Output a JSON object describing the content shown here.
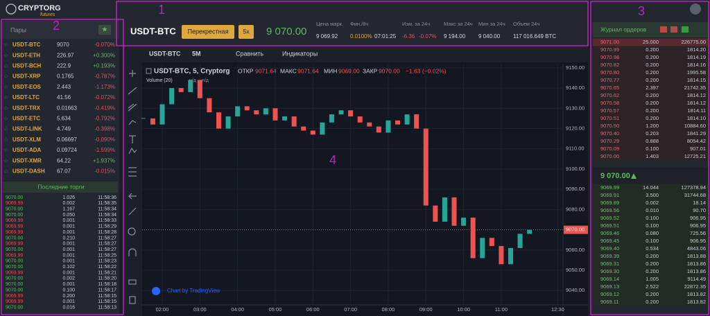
{
  "logo": {
    "name": "CRYPTORG",
    "sub": "futures"
  },
  "annotations": [
    "1",
    "2",
    "3",
    "4"
  ],
  "header": {
    "pair": "USDT-BTC",
    "margin_mode": "Перекрестная",
    "leverage": "5x",
    "price": "9 070.00",
    "stats": [
      {
        "label": "Цена марк.",
        "values": [
          "9 069.92"
        ]
      },
      {
        "label": "Фин./8ч",
        "values": [
          "0.0100%",
          "07:01:25"
        ]
      },
      {
        "label": "Изм. за 24ч",
        "values": [
          "-6.36",
          "-0.07%"
        ]
      },
      {
        "label": "Макс за 24ч",
        "values": [
          "9 194.00"
        ]
      },
      {
        "label": "Мин за 24ч",
        "values": [
          "9 040.00"
        ]
      },
      {
        "label": "Объем 24ч",
        "values": [
          "117 016.649 BTC"
        ]
      }
    ]
  },
  "pairs": {
    "title": "Пары",
    "rows": [
      [
        "USDT-BTC",
        "9070",
        "-0.070%"
      ],
      [
        "USDT-ETH",
        "226.97",
        "+0.300%"
      ],
      [
        "USDT-BCH",
        "222.9",
        "+0.193%"
      ],
      [
        "USDT-XRP",
        "0.1765",
        "-0.787%"
      ],
      [
        "USDT-EOS",
        "2.443",
        "-1.173%"
      ],
      [
        "USDT-LTC",
        "41.56",
        "-0.072%"
      ],
      [
        "USDT-TRX",
        "0.01663",
        "-0.419%"
      ],
      [
        "USDT-ETC",
        "5.634",
        "-0.792%"
      ],
      [
        "USDT-LINK",
        "4.749",
        "-0.398%"
      ],
      [
        "USDT-XLM",
        "0.06697",
        "-0.090%"
      ],
      [
        "USDT-ADA",
        "0.09724",
        "-1.599%"
      ],
      [
        "USDT-XMR",
        "64.22",
        "+1.937%"
      ],
      [
        "USDT-DASH",
        "67.07",
        "-0.015%"
      ]
    ]
  },
  "trades": {
    "title": "Последние торги",
    "rows": [
      [
        "9070.00",
        "1.026",
        "11:58:36"
      ],
      [
        "9069.99",
        "0.002",
        "11:58:35"
      ],
      [
        "9070.00",
        "1.167",
        "11:58:34"
      ],
      [
        "9070.00",
        "0.050",
        "11:58:34"
      ],
      [
        "9069.99",
        "0.001",
        "11:58:33"
      ],
      [
        "9069.99",
        "0.001",
        "11:58:29"
      ],
      [
        "9069.99",
        "0.001",
        "11:58:28"
      ],
      [
        "9070.00",
        "0.210",
        "11:58:27"
      ],
      [
        "9069.99",
        "0.001",
        "11:58:27"
      ],
      [
        "9070.00",
        "0.001",
        "11:58:27"
      ],
      [
        "9069.99",
        "0.001",
        "11:58:25"
      ],
      [
        "9070.00",
        "0.001",
        "11:58:23"
      ],
      [
        "9070.00",
        "0.102",
        "11:58:22"
      ],
      [
        "9069.99",
        "0.001",
        "11:58:21"
      ],
      [
        "9070.00",
        "0.002",
        "11:58:20"
      ],
      [
        "9070.00",
        "0.001",
        "11:58:18"
      ],
      [
        "9070.00",
        "0.100",
        "11:58:17"
      ],
      [
        "9069.99",
        "0.200",
        "11:58:15"
      ],
      [
        "9069.99",
        "0.001",
        "11:58:15"
      ],
      [
        "9070.00",
        "0.016",
        "11:58:13"
      ]
    ],
    "sides": [
      "buy",
      "sell",
      "buy",
      "buy",
      "sell",
      "sell",
      "sell",
      "buy",
      "sell",
      "buy",
      "sell",
      "buy",
      "buy",
      "sell",
      "buy",
      "buy",
      "buy",
      "sell",
      "sell",
      "buy"
    ]
  },
  "orderbook": {
    "title": "Журнал ордеров",
    "mid_price": "9 070.00",
    "asks": [
      [
        "9071.00",
        "25.000",
        "226775.00"
      ],
      [
        "9070.99",
        "0.200",
        "1814.20"
      ],
      [
        "9070.98",
        "0.200",
        "1814.19"
      ],
      [
        "9070.82",
        "0.200",
        "1814.16"
      ],
      [
        "9070.80",
        "0.200",
        "1995.58"
      ],
      [
        "9070.77",
        "0.200",
        "1814.15"
      ],
      [
        "9070.65",
        "2.397",
        "21742.35"
      ],
      [
        "9070.62",
        "0.200",
        "1814.12"
      ],
      [
        "9070.58",
        "0.200",
        "1814.12"
      ],
      [
        "9070.57",
        "0.200",
        "1814.11"
      ],
      [
        "9070.51",
        "0.200",
        "1814.10"
      ],
      [
        "9070.50",
        "1.200",
        "10884.60"
      ],
      [
        "9070.40",
        "0.203",
        "1841.29"
      ],
      [
        "9070.29",
        "0.888",
        "8054.42"
      ],
      [
        "9070.09",
        "0.100",
        "907.01"
      ],
      [
        "9070.00",
        "1.403",
        "12725.21"
      ]
    ],
    "bids": [
      [
        "9069.99",
        "14.044",
        "127378.94"
      ],
      [
        "9069.91",
        "3.500",
        "31744.68"
      ],
      [
        "9069.89",
        "0.002",
        "18.14"
      ],
      [
        "9069.56",
        "0.010",
        "90.70"
      ],
      [
        "9069.52",
        "0.100",
        "906.95"
      ],
      [
        "9069.51",
        "0.100",
        "906.95"
      ],
      [
        "9069.46",
        "0.080",
        "725.56"
      ],
      [
        "9069.45",
        "0.100",
        "906.95"
      ],
      [
        "9069.40",
        "0.534",
        "4843.06"
      ],
      [
        "9069.39",
        "0.200",
        "1813.88"
      ],
      [
        "9069.31",
        "0.200",
        "1813.86"
      ],
      [
        "9069.30",
        "0.200",
        "1813.86"
      ],
      [
        "9069.14",
        "1.005",
        "9114.49"
      ],
      [
        "9069.13",
        "2.522",
        "22872.35"
      ],
      [
        "9069.12",
        "0.200",
        "1813.82"
      ],
      [
        "9069.11",
        "0.200",
        "1813.82"
      ]
    ]
  },
  "chart": {
    "type": "candlestick",
    "toolbar": [
      "USDT-BTC",
      "5M",
      "Сравнить",
      "Индикаторы"
    ],
    "legend": {
      "title": "USDT-BTC, 5, Cryptorg",
      "open_label": "ОТКР",
      "open": "9071.64",
      "high_label": "МАКС",
      "high": "9071.64",
      "low_label": "МИН",
      "low": "9069.00",
      "close_label": "ЗАКР",
      "close": "9070.00",
      "change": "−1.63 (−0.02%)"
    },
    "volume_label": "Volume (20)",
    "volume_values": [
      "н/д",
      "н/д"
    ],
    "credit": "Chart by TradingView",
    "up_color": "#26a69a",
    "down_color": "#ef5350",
    "x": [
      1.5,
      1.75,
      2,
      2.25,
      2.5,
      2.75,
      3,
      3.25,
      3.5,
      3.75,
      4,
      4.25,
      4.5,
      4.75,
      5,
      5.25,
      5.5,
      5.75,
      6,
      6.25,
      6.5,
      6.75,
      7,
      7.25,
      7.5,
      7.75,
      8,
      8.25,
      8.5,
      8.75,
      9,
      9.25,
      9.5,
      9.75,
      10,
      10.25,
      10.5,
      10.75,
      11,
      11.25,
      11.5,
      11.75
    ],
    "close": [
      9125,
      9122,
      9132,
      9140,
      9138,
      9144,
      9135,
      9128,
      9120,
      9126,
      9131,
      9129,
      9127,
      9130,
      9124,
      9126,
      9121,
      9119,
      9117,
      9123,
      9127,
      9129,
      9126,
      9123,
      9121,
      9118,
      9124,
      9122,
      9127,
      9120,
      9082,
      9074,
      9086,
      9072,
      9076,
      9056,
      9066,
      9062,
      9053,
      9061,
      9068,
      9070
    ],
    "xlim": [
      1.466,
      12.64
    ],
    "xticks": [
      {
        "value": 2,
        "label": "02:00"
      },
      {
        "value": 3,
        "label": "03:00"
      },
      {
        "value": 4,
        "label": "04:00"
      },
      {
        "value": 5,
        "label": "05:00"
      },
      {
        "value": 6,
        "label": "06:00"
      },
      {
        "value": 7,
        "label": "07:00"
      },
      {
        "value": 8,
        "label": "08:00"
      },
      {
        "value": 9,
        "label": "09:00"
      },
      {
        "value": 10,
        "label": "10:00"
      },
      {
        "value": 11,
        "label": "11:00"
      },
      {
        "value": 12.5,
        "label": "12:30"
      }
    ],
    "ylim": [
      9032.9,
      9152
    ],
    "yticks": [
      {
        "value": 9040,
        "label": "9040.00"
      },
      {
        "value": 9050,
        "label": "9050.00"
      },
      {
        "value": 9060,
        "label": "9060.00"
      },
      {
        "value": 9080,
        "label": "9080.00"
      },
      {
        "value": 9090,
        "label": "9090.00"
      },
      {
        "value": 9100,
        "label": "9100.00"
      },
      {
        "value": 9110,
        "label": "9110.00"
      },
      {
        "value": 9120,
        "label": "9120.00"
      },
      {
        "value": 9130,
        "label": "9130.00"
      },
      {
        "value": 9140,
        "label": "9140.00"
      },
      {
        "value": 9150,
        "label": "9150.00"
      }
    ],
    "price_line": {
      "value": 9070,
      "label": "9070.00"
    },
    "grid": true
  }
}
